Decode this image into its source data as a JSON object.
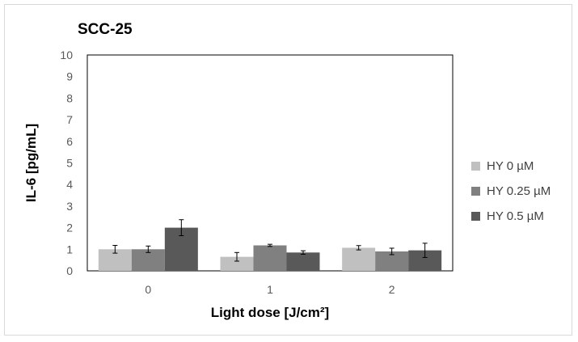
{
  "chart_data": {
    "type": "bar",
    "title": "SCC-25",
    "xlabel": "Light dose [J/cm²]",
    "ylabel": "IL-6 [pg/mL]",
    "ylim": [
      0,
      10
    ],
    "yticks": [
      "0",
      "1",
      "2",
      "3",
      "4",
      "5",
      "6",
      "7",
      "8",
      "9",
      "10"
    ],
    "categories": [
      "0",
      "1",
      "2"
    ],
    "legend_position": "right",
    "grid": false,
    "series": [
      {
        "name": "HY 0 µM",
        "color": "#c0c0c0",
        "values": [
          1.0,
          0.65,
          1.07
        ],
        "errors": [
          0.18,
          0.2,
          0.1
        ]
      },
      {
        "name": "HY 0.25 µM",
        "color": "#808080",
        "values": [
          1.0,
          1.18,
          0.9
        ],
        "errors": [
          0.15,
          0.05,
          0.15
        ]
      },
      {
        "name": "HY 0.5 µM",
        "color": "#595959",
        "values": [
          2.0,
          0.85,
          0.95
        ],
        "errors": [
          0.37,
          0.08,
          0.33
        ]
      }
    ]
  }
}
